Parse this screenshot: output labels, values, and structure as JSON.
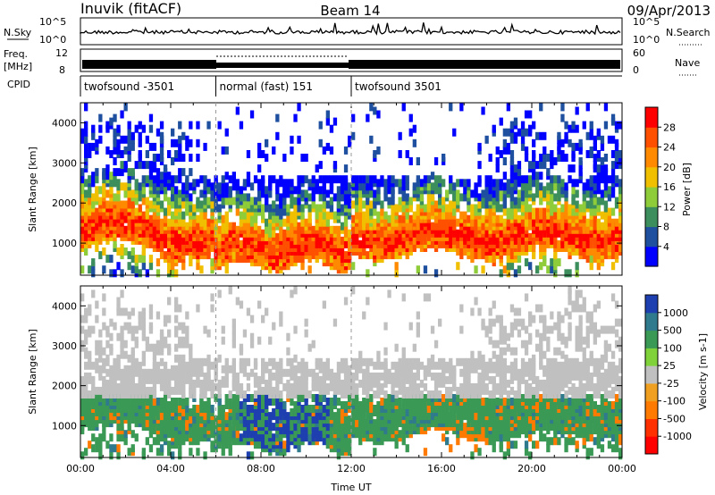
{
  "header": {
    "station": "Inuvik (fitACF)",
    "beam": "Beam 14",
    "date": "09/Apr/2013"
  },
  "strips": {
    "nsky_label": "N.Sky",
    "nsky_ticks": [
      "10^5",
      "10^0"
    ],
    "nsearch_label": "N.Search",
    "freq_label": "Freq.",
    "freq_unit": "[MHz]",
    "freq_ticks": [
      "12",
      "8"
    ],
    "nave_label": "Nave",
    "nave_ticks": [
      "60",
      "0"
    ],
    "cpid_label": "CPID",
    "cpid_segments": [
      {
        "label": "twofsound -3501",
        "start_h": 0,
        "end_h": 6
      },
      {
        "label": "normal (fast) 151",
        "start_h": 6,
        "end_h": 12
      },
      {
        "label": "twofsound 3501",
        "start_h": 12,
        "end_h": 24
      }
    ]
  },
  "colors": {
    "power": [
      "#0000ff",
      "#1f4f9f",
      "#3c8f5c",
      "#8fcc3a",
      "#f0c000",
      "#ff8a00",
      "#ff5000",
      "#ff0000"
    ],
    "velocity": [
      "#1e3fb0",
      "#2f7a8c",
      "#3a9a55",
      "#7fd23a",
      "#c0c0c0",
      "#f0a020",
      "#ff7a00",
      "#ff3000",
      "#ff0000"
    ]
  },
  "chart_data": [
    {
      "type": "heatmap",
      "name": "Power panel",
      "xlabel": "Time UT",
      "ylabel": "Slant Range [km]",
      "xlim": [
        0,
        24
      ],
      "ylim": [
        200,
        4500
      ],
      "yticks": [
        "1000",
        "2000",
        "3000",
        "4000"
      ],
      "colorbar_label": "Power [dB]",
      "colorbar_ticks": [
        "28",
        "24",
        "20",
        "16",
        "12",
        "8",
        "4"
      ],
      "colorbar_range": [
        0,
        32
      ]
    },
    {
      "type": "heatmap",
      "name": "Velocity panel",
      "xlabel": "Time UT",
      "ylabel": "Slant Range [km]",
      "xlim": [
        0,
        24
      ],
      "ylim": [
        200,
        4500
      ],
      "yticks": [
        "1000",
        "2000",
        "3000",
        "4000"
      ],
      "xticks": [
        "00:00",
        "04:00",
        "08:00",
        "12:00",
        "16:00",
        "20:00",
        "00:00"
      ],
      "colorbar_label": "Velocity [m s-1]",
      "colorbar_ticks": [
        "1000",
        "500",
        "100",
        "25",
        "-25",
        "-100",
        "-500",
        "-1000"
      ]
    }
  ]
}
